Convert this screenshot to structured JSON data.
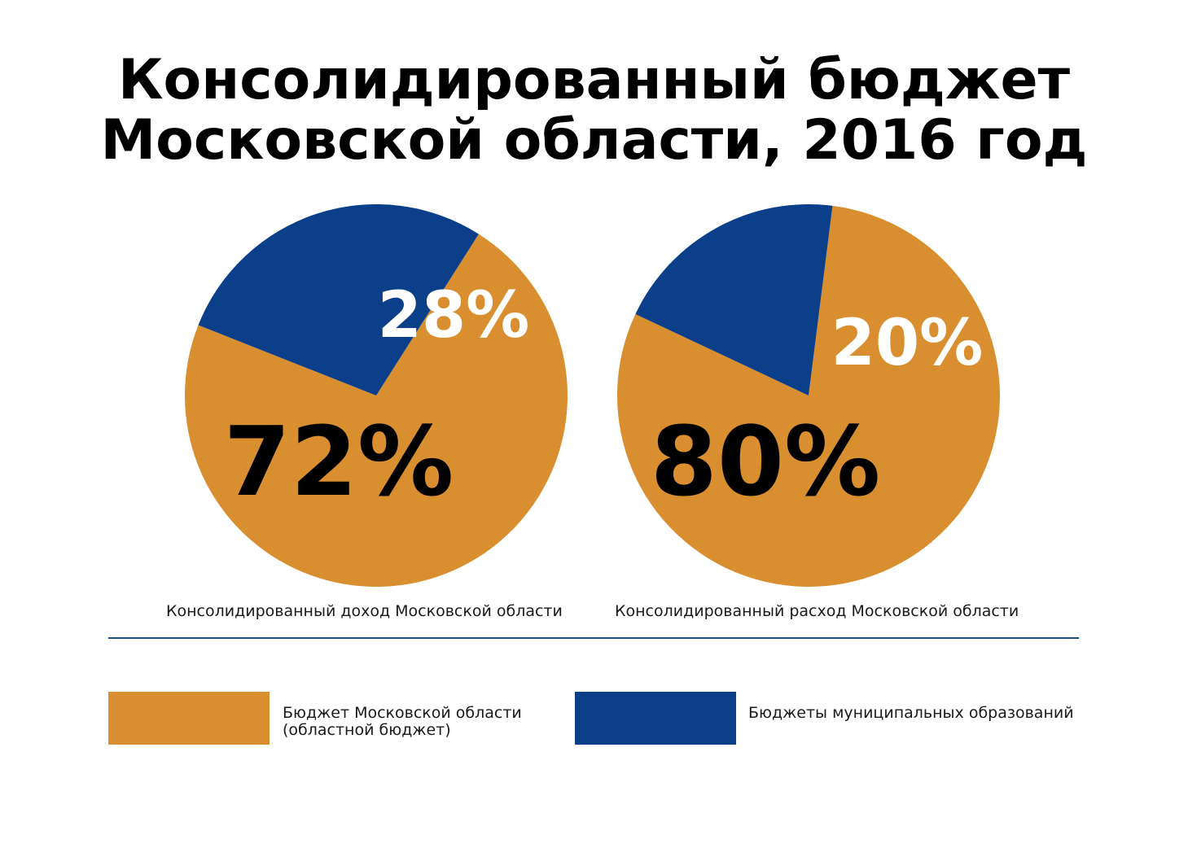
{
  "title": {
    "line1": "Консолидированный бюджет",
    "line2": "Московской области, 2016 год"
  },
  "colors": {
    "regional": "#D98F2F",
    "municipal": "#0B3F8A",
    "divider": "#1F4E8C"
  },
  "chart_data": [
    {
      "type": "pie",
      "title": "Консолидированный доход Московской области",
      "slices": [
        {
          "name": "Бюджет Московской области (областной бюджет)",
          "value": 72,
          "label": "72%",
          "color": "#D98F2F"
        },
        {
          "name": "Бюджеты муниципальных образований",
          "value": 28,
          "label": "28%",
          "color": "#0B3F8A"
        }
      ]
    },
    {
      "type": "pie",
      "title": "Консолидированный расход Московской области",
      "slices": [
        {
          "name": "Бюджет Московской области (областной бюджет)",
          "value": 80,
          "label": "80%",
          "color": "#D98F2F"
        },
        {
          "name": "Бюджеты муниципальных образований",
          "value": 20,
          "label": "20%",
          "color": "#0B3F8A"
        }
      ]
    }
  ],
  "legend": [
    {
      "line1": "Бюджет Московской области",
      "line2": "(областной бюджет)",
      "color": "#D98F2F"
    },
    {
      "line1": "Бюджеты муниципальных образований",
      "line2": "",
      "color": "#0B3F8A"
    }
  ]
}
